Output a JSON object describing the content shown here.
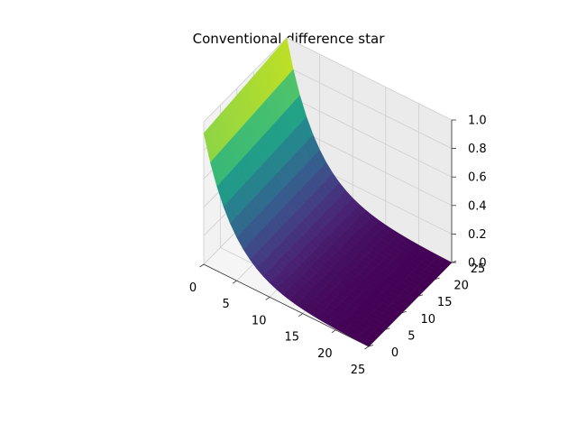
{
  "chart_data": {
    "type": "surface",
    "title": "Conventional difference star",
    "xlabel": "",
    "ylabel": "",
    "zlabel": "",
    "colormap": "viridis",
    "xlim": [
      0,
      25
    ],
    "ylim": [
      0,
      25
    ],
    "zlim": [
      0,
      1
    ],
    "x_ticks": [
      0,
      5,
      10,
      15,
      20,
      25
    ],
    "y_ticks": [
      0,
      5,
      10,
      15,
      20,
      25
    ],
    "z_ticks": [
      0.0,
      0.2,
      0.4,
      0.6,
      0.8,
      1.0
    ],
    "x_tick_labels": [
      "0",
      "5",
      "10",
      "15",
      "20",
      "25"
    ],
    "y_tick_labels": [
      "0",
      "5",
      "10",
      "15",
      "20",
      "25"
    ],
    "z_tick_labels": [
      "0.0",
      "0.2",
      "0.4",
      "0.6",
      "0.8",
      "1.0"
    ],
    "grid": true,
    "grid_size": 26,
    "boundary_values": {
      "z_at_y0_x0": 0.92,
      "z_at_y0_x25": 0.0,
      "z_at_y25_x0": 1.0,
      "z_at_y25_x25": 0.0
    },
    "decay_rate_along_x": 0.22
  }
}
